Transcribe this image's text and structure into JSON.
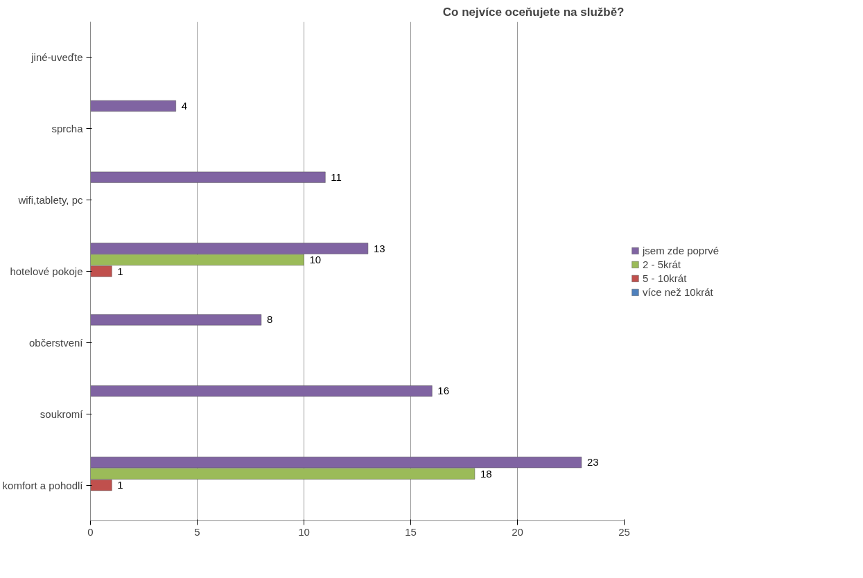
{
  "chart_data": {
    "type": "bar",
    "orientation": "horizontal",
    "title": "Co nejvíce oceňujete na službě?",
    "categories": [
      "jiné-uveďte",
      "sprcha",
      "wifi,tablety, pc",
      "hotelové pokoje",
      "občerstvení",
      "soukromí",
      "komfort a pohodlí"
    ],
    "series": [
      {
        "name": "jsem zde poprvé",
        "color": "#8064a2",
        "values": [
          null,
          4,
          11,
          13,
          8,
          16,
          23
        ]
      },
      {
        "name": "2 - 5krát",
        "color": "#9bbb59",
        "values": [
          null,
          null,
          null,
          10,
          null,
          null,
          18
        ]
      },
      {
        "name": "5 - 10krát",
        "color": "#c0504d",
        "values": [
          null,
          null,
          null,
          1,
          null,
          null,
          1
        ]
      },
      {
        "name": "více než 10krát",
        "color": "#4f81bd",
        "values": [
          null,
          null,
          null,
          null,
          null,
          null,
          null
        ]
      }
    ],
    "xlim": [
      0,
      25
    ],
    "xticks": [
      0,
      5,
      10,
      15,
      20,
      25
    ],
    "grid": "x",
    "legend": "right",
    "data_labels": true
  }
}
